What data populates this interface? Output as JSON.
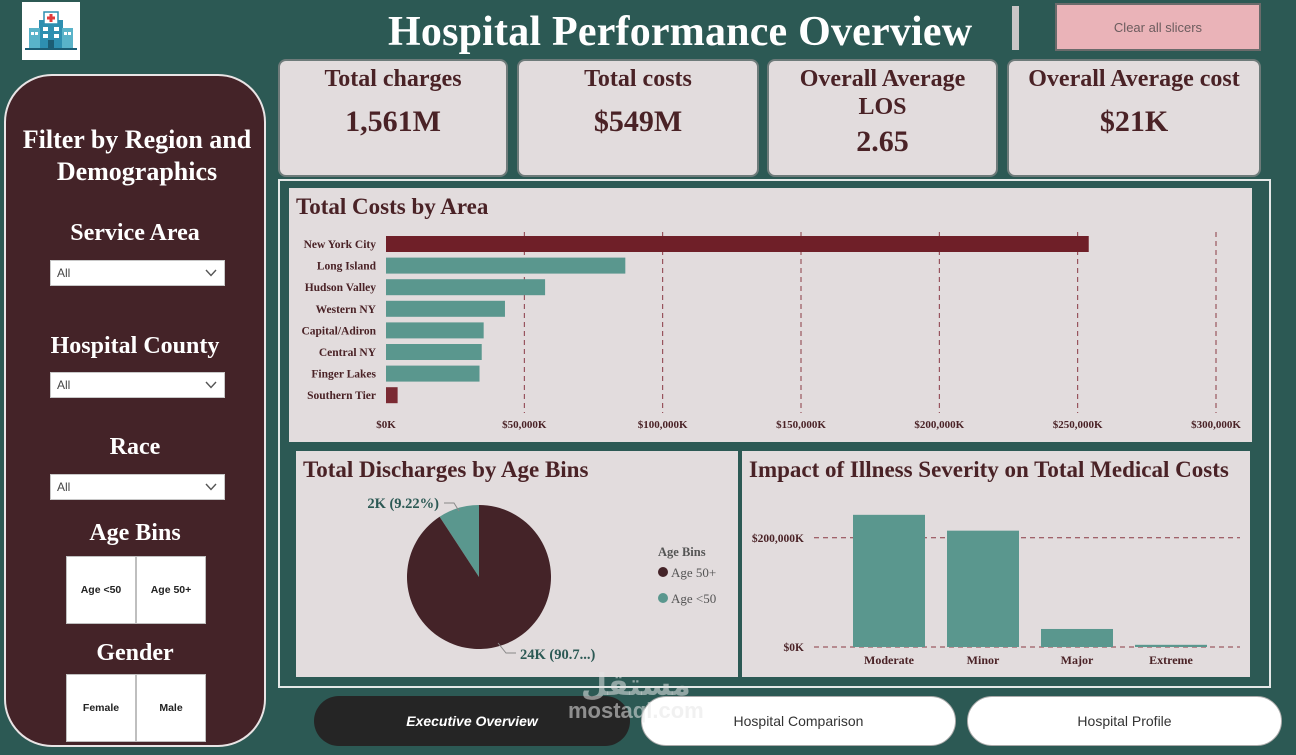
{
  "header": {
    "title": "Hospital Performance Overview",
    "clear_label": "Clear all slicers",
    "logo_icon": "hospital-icon"
  },
  "colors": {
    "background": "#2c5954",
    "maroon": "#442328",
    "accent_bar": "#6f1f28",
    "teal": "#5a978e",
    "panel": "#e2dcdd",
    "clear_button": "#eab3b8"
  },
  "sidebar": {
    "title": "Filter by Region and Demographics",
    "service_area": {
      "label": "Service Area",
      "value": "All"
    },
    "hospital_county": {
      "label": "Hospital County",
      "value": "All"
    },
    "race": {
      "label": "Race",
      "value": "All"
    },
    "age_bins": {
      "label": "Age Bins",
      "options": [
        "Age <50",
        "Age 50+"
      ]
    },
    "gender": {
      "label": "Gender",
      "options": [
        "Female",
        "Male"
      ]
    }
  },
  "kpis": [
    {
      "label": "Total charges",
      "value": "1,561M"
    },
    {
      "label": "Total costs",
      "value": "$549M"
    },
    {
      "label": "Overall Average LOS",
      "value": "2.65"
    },
    {
      "label": "Overall Average cost",
      "value": "$21K"
    }
  ],
  "chart_data": [
    {
      "type": "bar",
      "orientation": "horizontal",
      "title": "Total Costs by Area",
      "categories": [
        "New York City",
        "Long Island",
        "Hudson Valley",
        "Western NY",
        "Capital/Adiron",
        "Central NY",
        "Finger Lakes",
        "Southern Tier"
      ],
      "values": [
        254000,
        86500,
        57500,
        43000,
        35300,
        34600,
        33800,
        4200
      ],
      "highlight": [
        "#6f1f28",
        "#5a978e",
        "#5a978e",
        "#5a978e",
        "#5a978e",
        "#5a978e",
        "#5a978e",
        "#7a2a33"
      ],
      "xlim": [
        0,
        300000
      ],
      "ticks": [
        0,
        50000,
        100000,
        150000,
        200000,
        250000,
        300000
      ],
      "tick_labels": [
        "$0K",
        "$50,000K",
        "$100,000K",
        "$150,000K",
        "$200,000K",
        "$250,000K",
        "$300,000K"
      ],
      "grid": true
    },
    {
      "type": "pie",
      "title": "Total Discharges by Age Bins",
      "legend_title": "Age Bins",
      "slices": [
        {
          "name": "Age 50+",
          "value": 90.78,
          "label": "24K (90.7...)",
          "color": "#442328"
        },
        {
          "name": "Age <50",
          "value": 9.22,
          "label": "2K (9.22%)",
          "color": "#5a978e"
        }
      ]
    },
    {
      "type": "bar",
      "title": "Impact of Illness Severity on Total Medical Costs",
      "categories": [
        "Moderate",
        "Minor",
        "Major",
        "Extreme"
      ],
      "values": [
        242000,
        213000,
        33000,
        4000
      ],
      "ylim": [
        0,
        260000
      ],
      "ticks": [
        0,
        200000
      ],
      "tick_labels": [
        "$0K",
        "$200,000K"
      ],
      "grid": true
    }
  ],
  "nav": {
    "tabs": [
      {
        "label": "Executive Overview",
        "active": true
      },
      {
        "label": "Hospital Comparison",
        "active": false
      },
      {
        "label": "Hospital Profile",
        "active": false
      }
    ]
  },
  "watermark": {
    "line1": "مستقل",
    "line2": "mostaql.com"
  }
}
